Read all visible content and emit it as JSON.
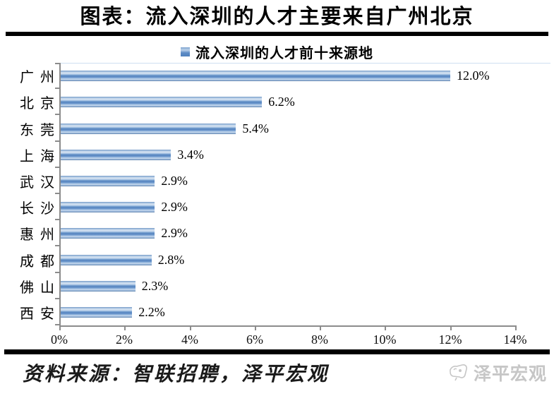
{
  "page": {
    "title": "图表：流入深圳的人才主要来自广州北京",
    "source_note": "资料来源：智联招聘，泽平宏观",
    "watermark_label": "泽平宏观"
  },
  "chart_data": {
    "type": "bar",
    "orientation": "horizontal",
    "title": "流入深圳的人才前十来源地",
    "legend_label": "流入深圳的人才前十来源地",
    "legend_position": "top",
    "categories": [
      "广州",
      "北京",
      "东莞",
      "上海",
      "武汉",
      "长沙",
      "惠州",
      "成都",
      "佛山",
      "西安"
    ],
    "values": [
      12.0,
      6.2,
      5.4,
      3.4,
      2.9,
      2.9,
      2.9,
      2.8,
      2.3,
      2.2
    ],
    "value_labels": [
      "12.0%",
      "6.2%",
      "5.4%",
      "3.4%",
      "2.9%",
      "2.9%",
      "2.9%",
      "2.8%",
      "2.3%",
      "2.2%"
    ],
    "xlabel": "",
    "ylabel": "",
    "xlim": [
      0,
      14
    ],
    "x_tick_values": [
      0,
      2,
      4,
      6,
      8,
      10,
      12,
      14
    ],
    "x_tick_labels": [
      "0%",
      "2%",
      "4%",
      "6%",
      "8%",
      "10%",
      "12%",
      "14%"
    ],
    "grid": false,
    "colors": {
      "bar": "#5e8cc6",
      "bar_highlight": "#d9e5f2",
      "axis": "#8c8c8c",
      "watermark": "#c6c6c6"
    }
  }
}
